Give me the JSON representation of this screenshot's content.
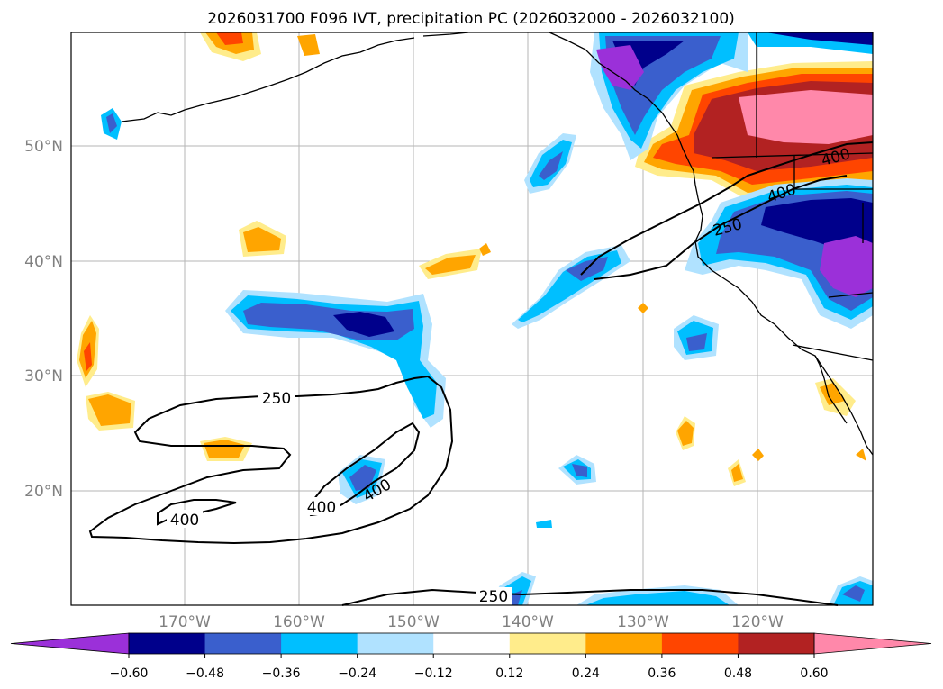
{
  "title": "2026031700 F096 IVT, precipitation PC (2026032000 - 2026032100)",
  "lat_labels": [
    "50°N",
    "40°N",
    "30°N",
    "20°N"
  ],
  "lon_labels": [
    "170°W",
    "160°W",
    "150°W",
    "140°W",
    "130°W",
    "120°W"
  ],
  "colorbar": {
    "tick_labels": [
      "−0.60",
      "−0.48",
      "−0.36",
      "−0.24",
      "−0.12",
      "0.12",
      "0.24",
      "0.36",
      "0.48",
      "0.60"
    ],
    "colors": [
      "#9b30d9",
      "#00008b",
      "#3a5fcd",
      "#00bfff",
      "#b0e2ff",
      "#ffffff",
      "#ffec8b",
      "#ffa500",
      "#ff4500",
      "#b22222",
      "#ff88aa"
    ]
  },
  "contour_labels": {
    "a": "250",
    "b": "400",
    "c": "400",
    "d": "400",
    "e": "250",
    "f": "400",
    "g": "400",
    "h": "250"
  }
}
